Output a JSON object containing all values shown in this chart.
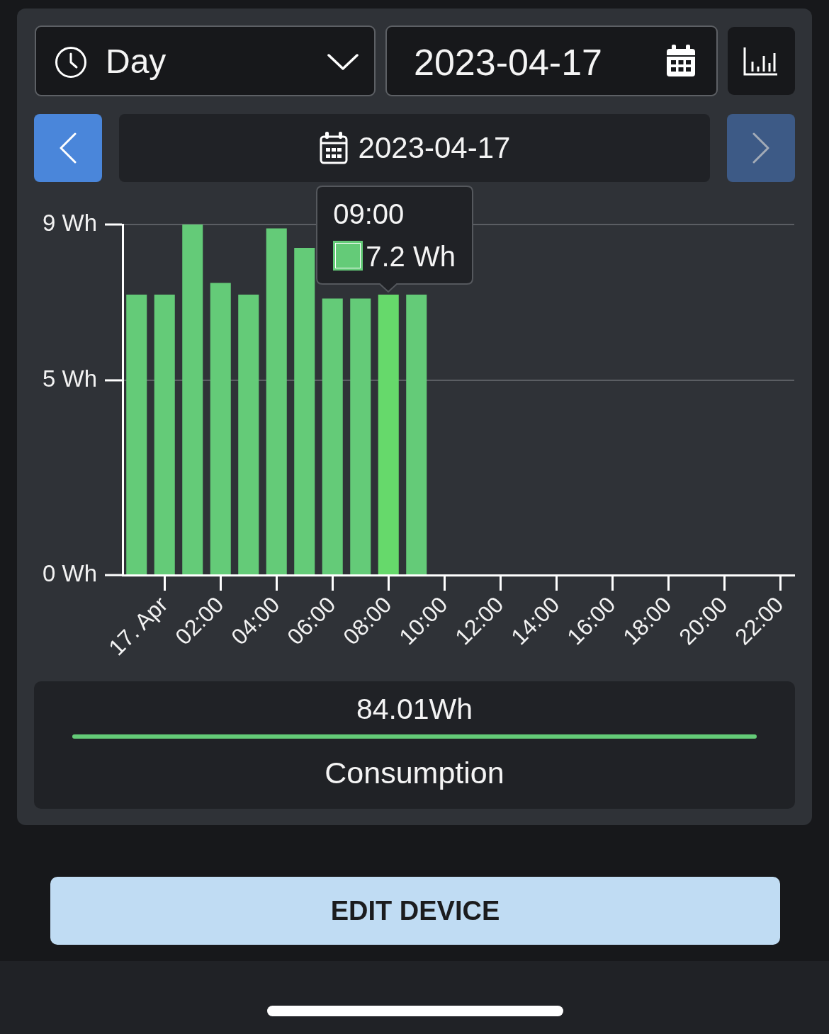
{
  "chart_data": {
    "type": "bar",
    "title": "2023-04-17",
    "categories": [
      null,
      "17. Apr",
      null,
      "02:00",
      null,
      "04:00",
      null,
      "06:00",
      null,
      "08:00",
      null,
      "10:00",
      null,
      "12:00",
      null,
      "14:00",
      null,
      "16:00",
      null,
      "18:00",
      null,
      "20:00",
      null,
      "22:00"
    ],
    "series": [
      {
        "name": "Consumption",
        "color": "#64cb78",
        "values": [
          7.2,
          7.2,
          9.0,
          7.5,
          7.2,
          8.9,
          8.4,
          7.1,
          7.1,
          7.2,
          7.2,
          null,
          null,
          null,
          null,
          null,
          null,
          null,
          null,
          null,
          null,
          null,
          null,
          null
        ],
        "colors": [
          "#64cb78",
          "#64cb78",
          "#64cb78",
          "#64cb78",
          "#64cb78",
          "#64cb78",
          "#64cb78",
          "#64cb78",
          "#64cb78",
          "#66d96b",
          "#64cb78",
          null,
          null,
          null,
          null,
          null,
          null,
          null,
          null,
          null,
          null,
          null,
          null,
          null
        ],
        "value_labels": [
          null,
          null,
          null,
          null,
          null,
          null,
          null,
          null,
          null,
          "7.2 Wh",
          null,
          null,
          null,
          null,
          null,
          null,
          null,
          null,
          null,
          null,
          null,
          null,
          null,
          null
        ]
      }
    ],
    "ylim": [
      0,
      9
    ],
    "yticks": [
      {
        "value": 0,
        "label": "0 Wh"
      },
      {
        "value": 5,
        "label": "5 Wh"
      },
      {
        "value": 9,
        "label": "9 Wh"
      }
    ],
    "grid": "y",
    "legend": "bottom",
    "annotations": [
      "Day",
      "2023-04-17",
      "09:00",
      "84.01Wh",
      "EDIT DEVICE"
    ]
  }
}
